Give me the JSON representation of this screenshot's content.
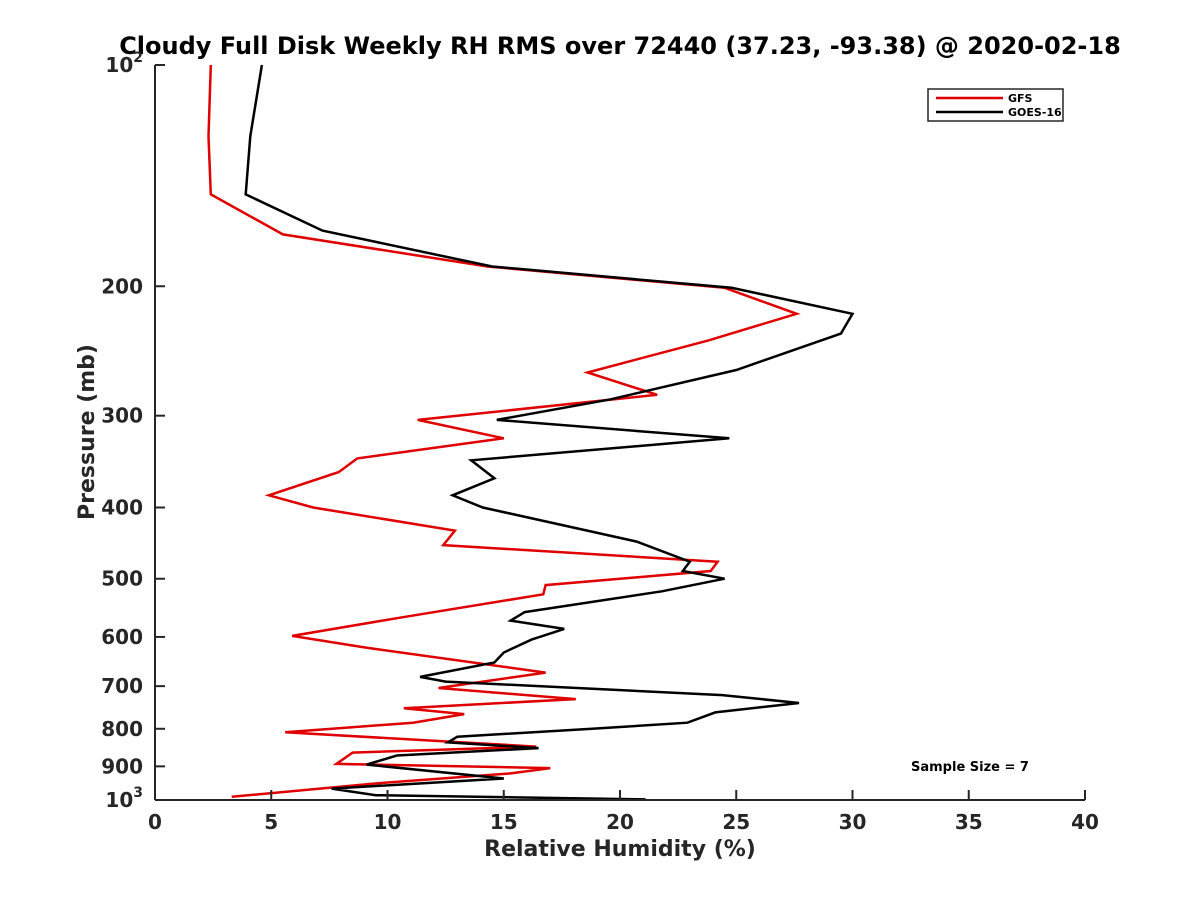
{
  "chart_data": {
    "type": "line",
    "title": "Cloudy Full Disk Weekly RH RMS over 72440 (37.23, -93.38) @ 2020-02-18",
    "xlabel": "Relative Humidity (%)",
    "ylabel": "Pressure (mb)",
    "xlim": [
      0,
      40
    ],
    "ylim": [
      100,
      1000
    ],
    "y_scale": "log",
    "y_reversed": true,
    "grid": false,
    "legend_position": "top-right",
    "x_ticks": [
      0,
      5,
      10,
      15,
      20,
      25,
      30,
      35,
      40
    ],
    "x_tick_labels": [
      "0",
      "5",
      "10",
      "15",
      "20",
      "25",
      "30",
      "35",
      "40"
    ],
    "y_ticks": [
      100,
      200,
      300,
      400,
      500,
      600,
      700,
      800,
      900,
      1000
    ],
    "y_tick_labels": [
      {
        "base": "10",
        "exp": "2"
      },
      {
        "base": "200",
        "exp": ""
      },
      {
        "base": "300",
        "exp": ""
      },
      {
        "base": "400",
        "exp": ""
      },
      {
        "base": "500",
        "exp": ""
      },
      {
        "base": "600",
        "exp": ""
      },
      {
        "base": "700",
        "exp": ""
      },
      {
        "base": "800",
        "exp": ""
      },
      {
        "base": "900",
        "exp": ""
      },
      {
        "base": "10",
        "exp": "3"
      }
    ],
    "annotation": "Sample Size = 7",
    "series": [
      {
        "name": "GFS",
        "color": "#e00000",
        "points": [
          [
            2.4,
            100
          ],
          [
            2.3,
            125
          ],
          [
            2.4,
            150
          ],
          [
            5.5,
            170
          ],
          [
            14.3,
            188
          ],
          [
            24.5,
            201
          ],
          [
            27.6,
            218
          ],
          [
            23.8,
            237
          ],
          [
            18.6,
            262
          ],
          [
            21.6,
            281
          ],
          [
            11.3,
            304
          ],
          [
            15.0,
            322
          ],
          [
            8.7,
            343
          ],
          [
            7.9,
            358
          ],
          [
            4.9,
            385
          ],
          [
            6.8,
            400
          ],
          [
            12.9,
            430
          ],
          [
            12.4,
            450
          ],
          [
            24.2,
            474
          ],
          [
            23.9,
            488
          ],
          [
            16.8,
            510
          ],
          [
            16.7,
            525
          ],
          [
            10.5,
            565
          ],
          [
            5.9,
            598
          ],
          [
            9.0,
            620
          ],
          [
            16.8,
            671
          ],
          [
            12.2,
            704
          ],
          [
            18.1,
            729
          ],
          [
            10.7,
            750
          ],
          [
            13.3,
            764
          ],
          [
            11.1,
            785
          ],
          [
            5.6,
            809
          ],
          [
            16.4,
            846
          ],
          [
            8.5,
            862
          ],
          [
            7.8,
            893
          ],
          [
            17.0,
            905
          ],
          [
            15.3,
            920
          ],
          [
            9.4,
            950
          ],
          [
            3.3,
            990
          ]
        ]
      },
      {
        "name": "GOES-16",
        "color": "#000000",
        "points": [
          [
            4.6,
            100
          ],
          [
            4.1,
            125
          ],
          [
            3.9,
            150
          ],
          [
            7.2,
            168
          ],
          [
            14.5,
            188
          ],
          [
            24.8,
            201
          ],
          [
            30.0,
            218
          ],
          [
            29.5,
            232
          ],
          [
            25.0,
            260
          ],
          [
            19.6,
            285
          ],
          [
            14.7,
            304
          ],
          [
            24.7,
            322
          ],
          [
            13.6,
            345
          ],
          [
            14.6,
            365
          ],
          [
            12.8,
            385
          ],
          [
            14.1,
            400
          ],
          [
            20.7,
            445
          ],
          [
            23.0,
            474
          ],
          [
            22.7,
            488
          ],
          [
            24.5,
            500
          ],
          [
            21.8,
            520
          ],
          [
            15.9,
            555
          ],
          [
            15.3,
            570
          ],
          [
            17.6,
            585
          ],
          [
            16.2,
            605
          ],
          [
            15.0,
            630
          ],
          [
            14.6,
            650
          ],
          [
            11.4,
            680
          ],
          [
            12.5,
            690
          ],
          [
            24.4,
            720
          ],
          [
            27.7,
            738
          ],
          [
            24.1,
            760
          ],
          [
            22.9,
            785
          ],
          [
            18.8,
            800
          ],
          [
            13.0,
            820
          ],
          [
            12.6,
            835
          ],
          [
            16.5,
            850
          ],
          [
            10.4,
            870
          ],
          [
            9.1,
            895
          ],
          [
            15.0,
            935
          ],
          [
            7.6,
            965
          ],
          [
            9.5,
            985
          ],
          [
            21.1,
            998
          ]
        ]
      }
    ]
  }
}
